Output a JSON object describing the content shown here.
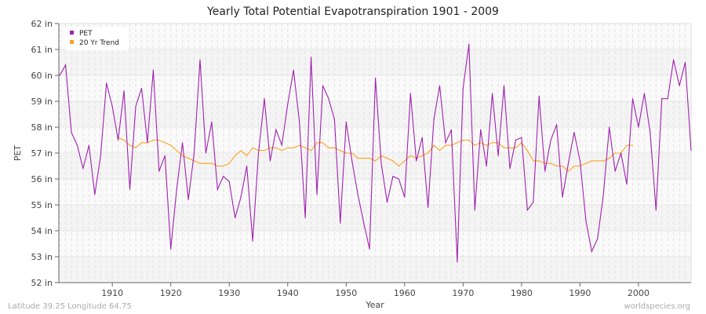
{
  "chart_data": {
    "type": "line",
    "title": "Yearly Total Potential Evapotranspiration 1901 - 2009",
    "xlabel": "Year",
    "ylabel": "PET",
    "y_unit": "in",
    "xlim": [
      1901,
      2009
    ],
    "ylim": [
      52,
      62
    ],
    "x_ticks": [
      1910,
      1920,
      1930,
      1940,
      1950,
      1960,
      1970,
      1980,
      1990,
      2000
    ],
    "y_ticks": [
      52,
      53,
      54,
      55,
      56,
      57,
      58,
      59,
      60,
      61,
      62
    ],
    "grid": true,
    "legend_position": "top-left",
    "series": [
      {
        "name": "PET",
        "color": "#a020b0",
        "start_year": 1901,
        "values": [
          60.0,
          60.4,
          57.8,
          57.3,
          56.4,
          57.3,
          55.4,
          56.9,
          59.7,
          58.8,
          57.5,
          59.4,
          55.6,
          58.8,
          59.5,
          57.4,
          60.2,
          56.3,
          56.9,
          53.3,
          55.6,
          57.4,
          55.2,
          57.0,
          60.6,
          57.0,
          58.2,
          55.6,
          56.1,
          55.9,
          54.5,
          55.3,
          56.5,
          53.6,
          57.0,
          59.1,
          56.7,
          57.9,
          57.3,
          58.9,
          60.2,
          58.2,
          54.5,
          60.7,
          55.4,
          59.6,
          59.1,
          58.3,
          54.3,
          58.2,
          56.7,
          55.4,
          54.3,
          53.3,
          59.9,
          56.6,
          55.1,
          56.1,
          56.0,
          55.3,
          59.3,
          56.7,
          57.6,
          54.9,
          58.3,
          59.6,
          57.4,
          57.9,
          52.8,
          59.5,
          61.2,
          54.8,
          57.9,
          56.5,
          59.3,
          56.9,
          59.6,
          56.4,
          57.5,
          57.6,
          54.8,
          55.1,
          59.2,
          56.3,
          57.5,
          58.1,
          55.3,
          56.6,
          57.8,
          56.7,
          54.4,
          53.2,
          53.7,
          55.4,
          58.0,
          56.3,
          57.0,
          55.8,
          59.1,
          58.0,
          59.3,
          57.8,
          54.8,
          59.1,
          59.1,
          60.6,
          59.6,
          60.5,
          57.1
        ]
      },
      {
        "name": "20 Yr Trend",
        "color": "#ffa020",
        "start_year": 1911,
        "values": [
          57.6,
          57.5,
          57.3,
          57.2,
          57.4,
          57.4,
          57.5,
          57.5,
          57.4,
          57.3,
          57.1,
          56.9,
          56.8,
          56.7,
          56.6,
          56.6,
          56.6,
          56.5,
          56.5,
          56.6,
          56.9,
          57.1,
          56.9,
          57.2,
          57.1,
          57.1,
          57.2,
          57.2,
          57.1,
          57.2,
          57.2,
          57.3,
          57.2,
          57.1,
          57.4,
          57.4,
          57.2,
          57.2,
          57.1,
          57.0,
          57.0,
          56.8,
          56.8,
          56.8,
          56.7,
          56.9,
          56.8,
          56.7,
          56.5,
          56.7,
          56.9,
          56.8,
          56.9,
          57.0,
          57.3,
          57.1,
          57.3,
          57.3,
          57.4,
          57.5,
          57.5,
          57.3,
          57.4,
          57.3,
          57.4,
          57.4,
          57.2,
          57.2,
          57.2,
          57.4,
          57.1,
          56.7,
          56.7,
          56.6,
          56.6,
          56.5,
          56.5,
          56.3,
          56.5,
          56.5,
          56.6,
          56.7,
          56.7,
          56.7,
          56.8,
          57.0,
          57.0,
          57.3,
          57.3
        ]
      }
    ]
  },
  "footer": {
    "location": "Latitude 39.25 Longitude 64.75",
    "source": "worldspecies.org"
  }
}
